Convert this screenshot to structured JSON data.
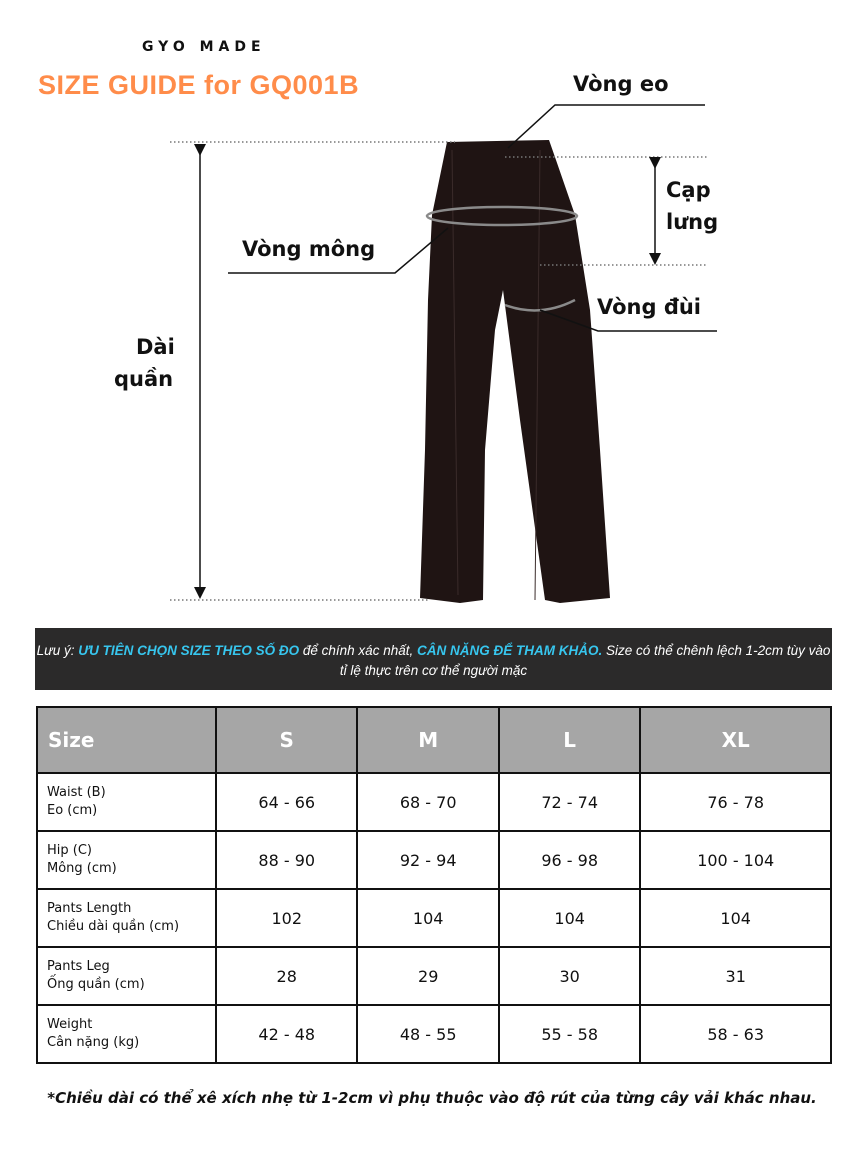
{
  "brand": "GYO MADE",
  "title": "SIZE GUIDE for GQ001B",
  "diagram": {
    "waist": "Vòng eo",
    "rise_line1": "Cạp",
    "rise_line2": "lưng",
    "hip": "Vòng mông",
    "thigh": "Vòng đùi",
    "length_line1": "Dài",
    "length_line2": "quần"
  },
  "note": {
    "prefix": "Lưu ý: ",
    "highlight1": "ƯU TIÊN CHỌN SIZE THEO SỐ ĐO",
    "middle": " để chính xác nhất, ",
    "highlight2": "CÂN NẶNG ĐỂ THAM KHẢO.",
    "suffix": " Size có thể chênh lệch 1-2cm tùy vào tỉ lệ thực trên cơ thể người mặc"
  },
  "colors": {
    "title": "#ff8c4a",
    "highlight": "#37c6ee",
    "header": "#a6a6a6",
    "note_bg": "#2b2a2a"
  },
  "table": {
    "headers": [
      "Size",
      "S",
      "M",
      "L",
      "XL"
    ],
    "rows": [
      {
        "l1": "Waist (B)",
        "l2": "Eo (cm)",
        "v": [
          "64 - 66",
          "68 - 70",
          "72 - 74",
          "76 - 78"
        ]
      },
      {
        "l1": "Hip (C)",
        "l2": "Mông (cm)",
        "v": [
          "88 - 90",
          "92 - 94",
          "96 - 98",
          "100 - 104"
        ]
      },
      {
        "l1": "Pants Length",
        "l2": "Chiều dài quần (cm)",
        "v": [
          "102",
          "104",
          "104",
          "104"
        ]
      },
      {
        "l1": "Pants Leg",
        "l2": "Ống quần (cm)",
        "v": [
          "28",
          "29",
          "30",
          "31"
        ]
      },
      {
        "l1": "Weight",
        "l2": "Cân nặng (kg)",
        "v": [
          "42 - 48",
          "48 - 55",
          "55 - 58",
          "58 - 63"
        ]
      }
    ]
  },
  "footnote": "*Chiều dài có thể xê xích nhẹ từ 1-2cm vì phụ thuộc vào độ rút của từng cây vải khác nhau."
}
